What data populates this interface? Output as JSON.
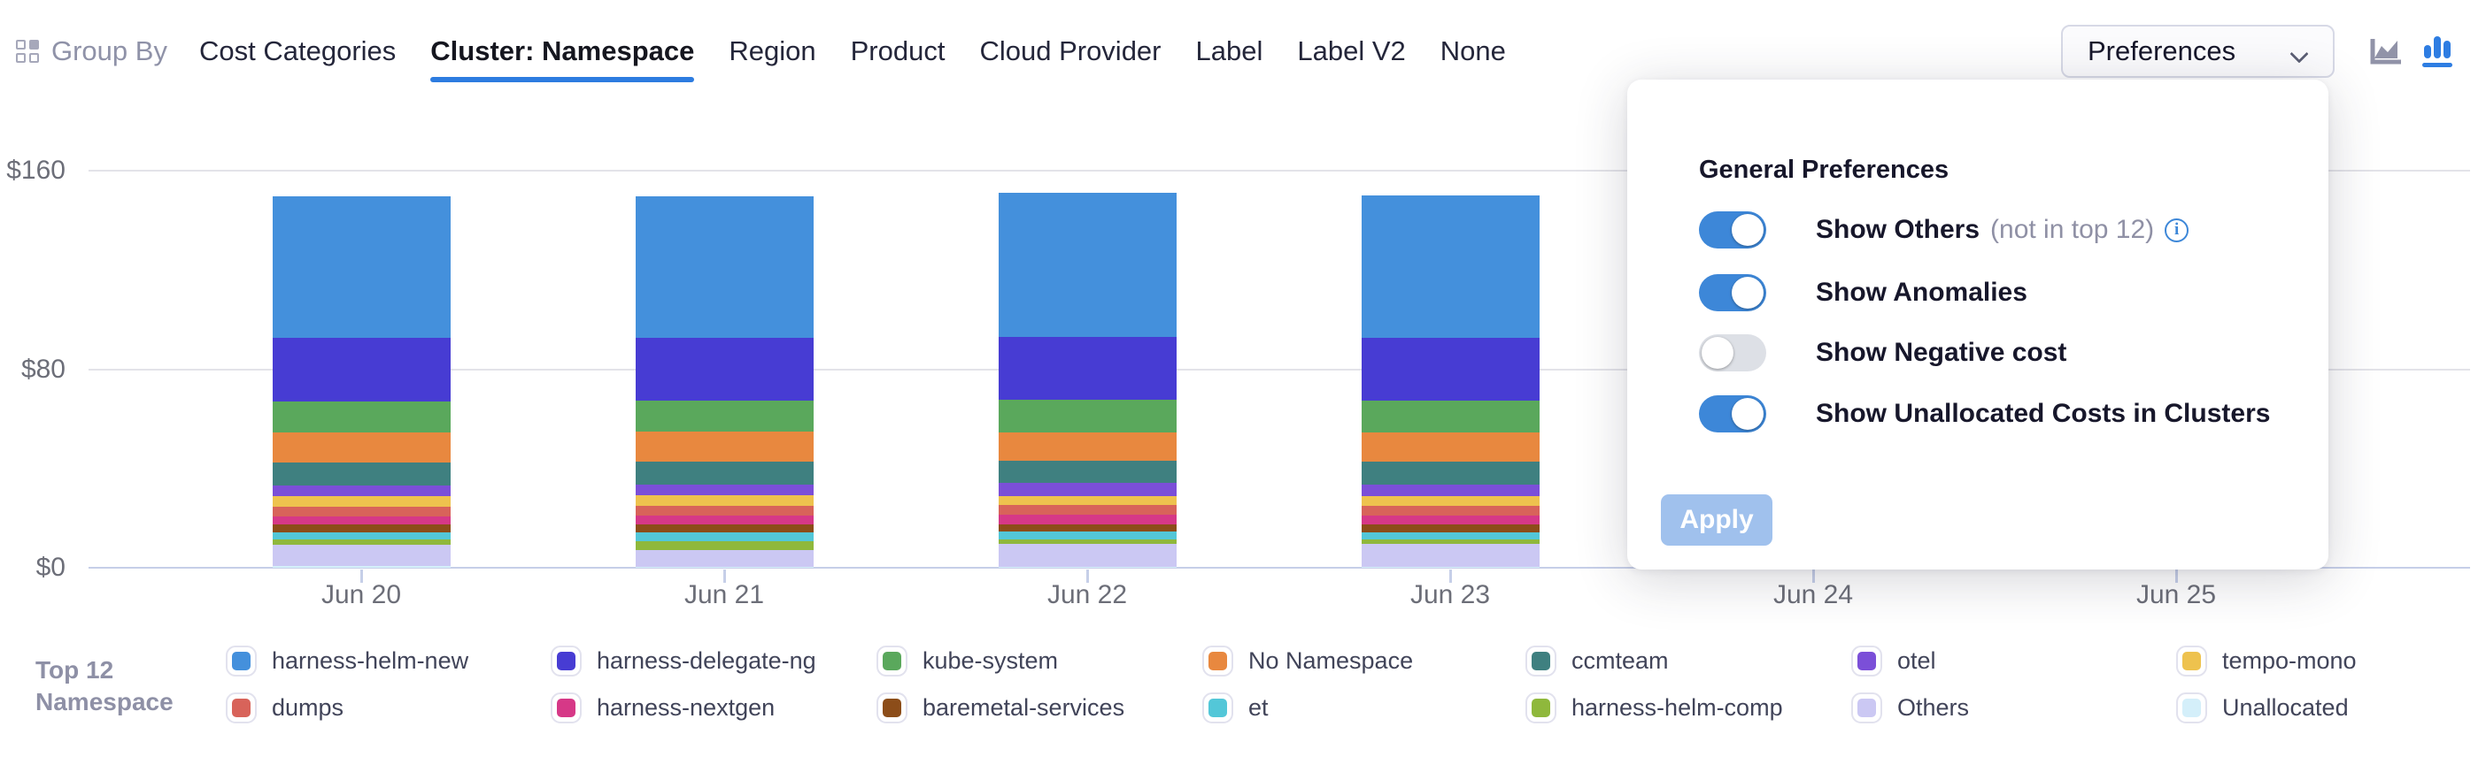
{
  "topbar": {
    "group_by_label": "Group By",
    "tabs": [
      {
        "label": "Cost Categories",
        "active": false
      },
      {
        "label": "Cluster: Namespace",
        "active": true
      },
      {
        "label": "Region",
        "active": false
      },
      {
        "label": "Product",
        "active": false
      },
      {
        "label": "Cloud Provider",
        "active": false
      },
      {
        "label": "Label",
        "active": false
      },
      {
        "label": "Label V2",
        "active": false
      },
      {
        "label": "None",
        "active": false
      }
    ],
    "preferences_button_label": "Preferences",
    "active_underline_color": "#2d7ce0",
    "chart_type_icons": [
      {
        "name": "area-chart-icon",
        "active": false,
        "color": "#9193a8"
      },
      {
        "name": "bar-chart-icon",
        "active": true,
        "color": "#2e7de2"
      }
    ]
  },
  "preferences_panel": {
    "title": "General Preferences",
    "accent_color": "#3d87d8",
    "toggles": [
      {
        "label": "Show Others",
        "suffix": "(not in top 12)",
        "has_info": true,
        "on": true
      },
      {
        "label": "Show Anomalies",
        "suffix": "",
        "has_info": false,
        "on": true
      },
      {
        "label": "Show Negative cost",
        "suffix": "",
        "has_info": false,
        "on": false
      },
      {
        "label": "Show Unallocated Costs in Clusters",
        "suffix": "",
        "has_info": false,
        "on": true
      }
    ],
    "apply_label": "Apply"
  },
  "legend": {
    "title_lines": [
      "Top 12",
      "Namespace"
    ]
  },
  "chart_data": {
    "type": "bar",
    "stacked": true,
    "title": "",
    "xlabel": "",
    "ylabel": "",
    "ylim": [
      0,
      160
    ],
    "grid": true,
    "legend_position": "bottom",
    "yticks": [
      {
        "label": "$0",
        "value": 0
      },
      {
        "label": "$80",
        "value": 80
      },
      {
        "label": "$160",
        "value": 160
      }
    ],
    "categories": [
      "Jun 20",
      "Jun 21",
      "Jun 22",
      "Jun 23",
      "Jun 24",
      "Jun 25"
    ],
    "stack_note": "first series renders on top of stack; stack drawn bottom-up in reverse series order; Jun 24 and Jun 25 have no bars",
    "series": [
      {
        "name": "harness-helm-new",
        "color": "#4490dc",
        "values": [
          57,
          57,
          58,
          57.5,
          null,
          null
        ]
      },
      {
        "name": "harness-delegate-ng",
        "color": "#473cd3",
        "values": [
          25.5,
          25.5,
          25.3,
          25.5,
          null,
          null
        ]
      },
      {
        "name": "kube-system",
        "color": "#5aa85c",
        "values": [
          12.5,
          12.5,
          13.2,
          12.8,
          null,
          null
        ]
      },
      {
        "name": "No Namespace",
        "color": "#e8883f",
        "values": [
          12,
          12,
          11.4,
          11.8,
          null,
          null
        ]
      },
      {
        "name": "ccmteam",
        "color": "#3f8080",
        "values": [
          9.3,
          9.3,
          8.9,
          9.1,
          null,
          null
        ]
      },
      {
        "name": "otel",
        "color": "#7b4fd8",
        "values": [
          4.3,
          4.3,
          5.3,
          4.6,
          null,
          null
        ]
      },
      {
        "name": "tempo-mono",
        "color": "#eec24e",
        "values": [
          4.3,
          4.3,
          3.9,
          4.1,
          null,
          null
        ]
      },
      {
        "name": "dumps",
        "color": "#d8635a",
        "values": [
          3.9,
          3.9,
          3.6,
          3.8,
          null,
          null
        ]
      },
      {
        "name": "harness-nextgen",
        "color": "#d63887",
        "values": [
          3.2,
          3.4,
          3.9,
          3.5,
          null,
          null
        ]
      },
      {
        "name": "baremetal-services",
        "color": "#8c4d19",
        "values": [
          3.2,
          3.2,
          2.9,
          3.1,
          null,
          null
        ]
      },
      {
        "name": "et",
        "color": "#53c7d8",
        "values": [
          2.9,
          3.6,
          3.2,
          2.9,
          null,
          null
        ]
      },
      {
        "name": "harness-helm-comp",
        "color": "#8fb83c",
        "values": [
          2.1,
          3.6,
          1.8,
          2.0,
          null,
          null
        ]
      },
      {
        "name": "Others",
        "color": "#cbc8f3",
        "values": [
          8.6,
          6.8,
          9.3,
          9.0,
          null,
          null
        ]
      },
      {
        "name": "Unallocated",
        "color": "#d4effa",
        "values": [
          0.7,
          0.4,
          0.4,
          0.5,
          null,
          null
        ]
      }
    ]
  }
}
